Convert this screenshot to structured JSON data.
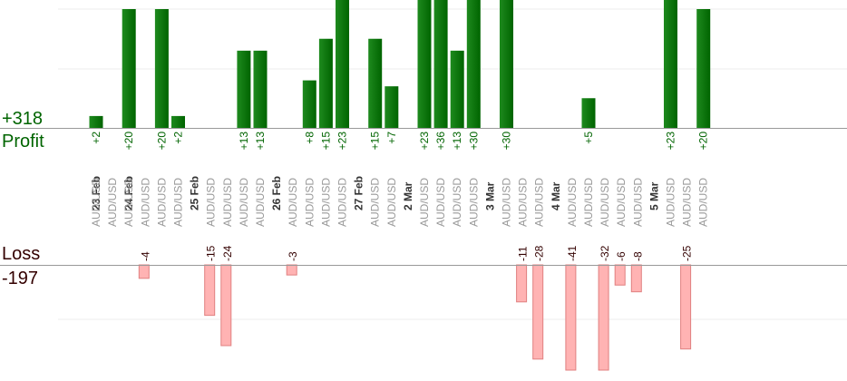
{
  "summary": {
    "profit_total": "+318",
    "profit_label": "Profit",
    "loss_label": "Loss",
    "loss_total": "-197"
  },
  "colors": {
    "profit_bar": "#006400",
    "profit_text": "#006400",
    "loss_bar": "#ffb3b3",
    "loss_bar_border": "#e08080",
    "loss_text": "#330000",
    "pair_text": "#999999",
    "date_text": "#333333",
    "baseline": "#999999",
    "grid": "#eeeeee"
  },
  "chart_data": {
    "type": "bar",
    "grid": true,
    "profit_axis_max": 20,
    "loss_axis_max": 24,
    "trades": [
      {
        "date": "23 Feb",
        "pair": "AUD/USD",
        "value": 2,
        "label": "+2"
      },
      {
        "date": null,
        "pair": "AUD/USD",
        "value": null,
        "label": ""
      },
      {
        "date": "24 Feb",
        "pair": "AUD/USD",
        "value": 20,
        "label": "+20"
      },
      {
        "date": null,
        "pair": "AUD/USD",
        "value": -4,
        "label": "-4"
      },
      {
        "date": null,
        "pair": "AUD/USD",
        "value": 20,
        "label": "+20"
      },
      {
        "date": null,
        "pair": "AUD/USD",
        "value": 2,
        "label": "+2"
      },
      {
        "date": "25 Feb",
        "pair": null,
        "value": null,
        "label": ""
      },
      {
        "date": null,
        "pair": "AUD/USD",
        "value": -15,
        "label": "-15"
      },
      {
        "date": null,
        "pair": "AUD/USD",
        "value": -24,
        "label": "-24"
      },
      {
        "date": null,
        "pair": "AUD/USD",
        "value": 13,
        "label": "+13"
      },
      {
        "date": null,
        "pair": "AUD/USD",
        "value": 13,
        "label": "+13"
      },
      {
        "date": "26 Feb",
        "pair": null,
        "value": null,
        "label": ""
      },
      {
        "date": null,
        "pair": "AUD/USD",
        "value": -3,
        "label": "-3"
      },
      {
        "date": null,
        "pair": "AUD/USD",
        "value": 8,
        "label": "+8"
      },
      {
        "date": null,
        "pair": "AUD/USD",
        "value": 15,
        "label": "+15"
      },
      {
        "date": null,
        "pair": "AUD/USD",
        "value": 23,
        "label": "+23"
      },
      {
        "date": "27 Feb",
        "pair": null,
        "value": null,
        "label": ""
      },
      {
        "date": null,
        "pair": "AUD/USD",
        "value": 15,
        "label": "+15"
      },
      {
        "date": null,
        "pair": "AUD/USD",
        "value": 7,
        "label": "+7"
      },
      {
        "date": "2 Mar",
        "pair": null,
        "value": null,
        "label": ""
      },
      {
        "date": null,
        "pair": "AUD/USD",
        "value": 23,
        "label": "+23"
      },
      {
        "date": null,
        "pair": "AUD/USD",
        "value": 36,
        "label": "+36"
      },
      {
        "date": null,
        "pair": "AUD/USD",
        "value": 13,
        "label": "+13"
      },
      {
        "date": null,
        "pair": "AUD/USD",
        "value": 30,
        "label": "+30"
      },
      {
        "date": "3 Mar",
        "pair": null,
        "value": null,
        "label": ""
      },
      {
        "date": null,
        "pair": "AUD/USD",
        "value": 30,
        "label": "+30"
      },
      {
        "date": null,
        "pair": "AUD/USD",
        "value": -11,
        "label": "-11"
      },
      {
        "date": null,
        "pair": "AUD/USD",
        "value": -28,
        "label": "-28"
      },
      {
        "date": "4 Mar",
        "pair": null,
        "value": null,
        "label": ""
      },
      {
        "date": null,
        "pair": "AUD/USD",
        "value": -41,
        "label": "-41"
      },
      {
        "date": null,
        "pair": "AUD/USD",
        "value": 5,
        "label": "+5"
      },
      {
        "date": null,
        "pair": "AUD/USD",
        "value": -32,
        "label": "-32"
      },
      {
        "date": null,
        "pair": "AUD/USD",
        "value": -6,
        "label": "-6"
      },
      {
        "date": null,
        "pair": "AUD/USD",
        "value": -8,
        "label": "-8"
      },
      {
        "date": "5 Mar",
        "pair": null,
        "value": null,
        "label": ""
      },
      {
        "date": null,
        "pair": "AUD/USD",
        "value": 23,
        "label": "+23"
      },
      {
        "date": null,
        "pair": "AUD/USD",
        "value": -25,
        "label": "-25"
      },
      {
        "date": null,
        "pair": "AUD/USD",
        "value": 20,
        "label": "+20"
      }
    ]
  }
}
